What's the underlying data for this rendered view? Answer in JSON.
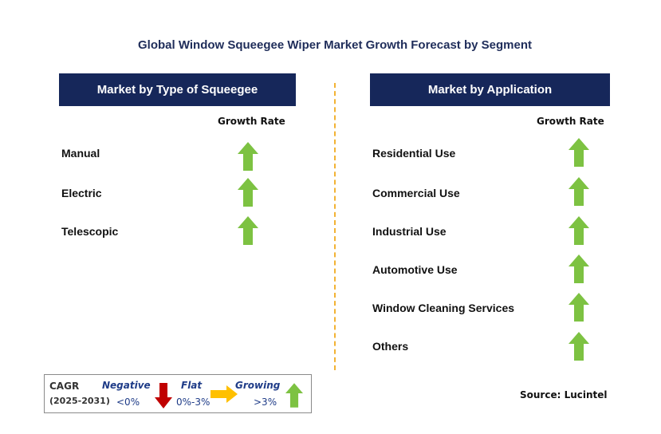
{
  "title": "Global Window Squeegee Wiper Market Growth Forecast by Segment",
  "left_panel": {
    "header": "Market by Type of Squeegee",
    "growth_rate_label": "Growth Rate",
    "items": [
      {
        "label": "Manual",
        "trend": "growing"
      },
      {
        "label": "Electric",
        "trend": "growing"
      },
      {
        "label": "Telescopic",
        "trend": "growing"
      }
    ]
  },
  "right_panel": {
    "header": "Market by Application",
    "growth_rate_label": "Growth Rate",
    "items": [
      {
        "label": "Residential Use",
        "trend": "growing"
      },
      {
        "label": "Commercial Use",
        "trend": "growing"
      },
      {
        "label": "Industrial Use",
        "trend": "growing"
      },
      {
        "label": "Automotive Use",
        "trend": "growing"
      },
      {
        "label": "Window Cleaning Services",
        "trend": "growing"
      },
      {
        "label": "Others",
        "trend": "growing"
      }
    ]
  },
  "legend": {
    "cagr": "CAGR",
    "period": "(2025-2031)",
    "negative": "Negative",
    "negative_range": "<0%",
    "flat": "Flat",
    "flat_range": "0%-3%",
    "growing": "Growing",
    "growing_range": ">3%"
  },
  "source": "Source: Lucintel",
  "colors": {
    "header_bg": "#16275a",
    "title": "#1f2d5a",
    "growing": "#7dc242",
    "negative": "#c00000",
    "flat": "#ffc000",
    "divider": "#f2b233",
    "legend_text": "#1f3c88"
  }
}
